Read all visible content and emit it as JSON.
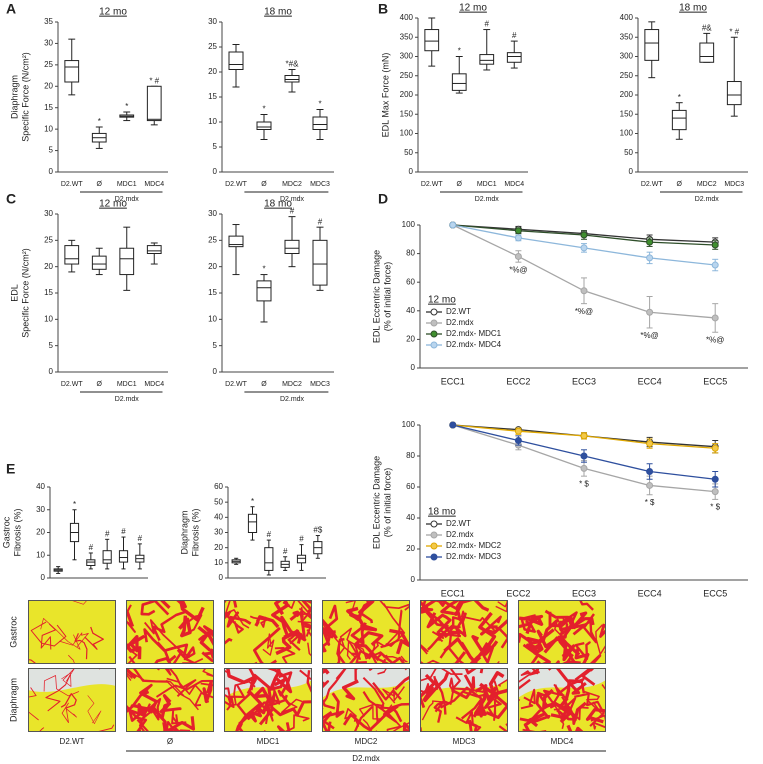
{
  "panel_labels": [
    "A",
    "B",
    "C",
    "D",
    "E"
  ],
  "chart_data": [
    {
      "type": "box",
      "title": "12 mo",
      "ylabel": [
        "Diaphragm",
        "Specific Force (N/cm²)"
      ],
      "categories": [
        "D2.WT",
        "Ø",
        "MDC1",
        "MDC4"
      ],
      "group_label": "D2.mdx",
      "boxes": [
        [
          18,
          21,
          24.5,
          26,
          31
        ],
        [
          5.5,
          7,
          8,
          9,
          10.5
        ],
        [
          12,
          12.8,
          13,
          13.3,
          14
        ],
        [
          11,
          12,
          12.3,
          20,
          20
        ]
      ],
      "annotations": [
        null,
        "*",
        "*",
        "* #"
      ],
      "ylim": [
        0,
        35
      ],
      "yticks": [
        0,
        5,
        10,
        15,
        20,
        25,
        30,
        35
      ]
    },
    {
      "type": "box",
      "title": "18 mo",
      "categories": [
        "D2.WT",
        "Ø",
        "MDC2",
        "MDC3"
      ],
      "group_label": "D2.mdx",
      "boxes": [
        [
          17,
          20.5,
          21.5,
          24,
          25.5
        ],
        [
          6.5,
          8.5,
          9,
          10,
          11.5
        ],
        [
          16,
          18,
          18.5,
          19.3,
          20.5
        ],
        [
          6.5,
          8.5,
          9.5,
          11,
          12.5
        ]
      ],
      "annotations": [
        null,
        "*",
        "*#&",
        "*"
      ],
      "ylim": [
        0,
        30
      ],
      "yticks": [
        0,
        5,
        10,
        15,
        20,
        25,
        30
      ]
    },
    {
      "type": "box",
      "title": "12 mo",
      "ylabel": [
        "EDL Max Force (mN)"
      ],
      "categories": [
        "D2.WT",
        "Ø",
        "MDC1",
        "MDC4"
      ],
      "group_label": "D2.mdx",
      "boxes": [
        [
          275,
          315,
          340,
          370,
          400
        ],
        [
          205,
          212,
          230,
          255,
          300
        ],
        [
          265,
          280,
          290,
          305,
          370
        ],
        [
          270,
          285,
          300,
          310,
          340
        ]
      ],
      "annotations": [
        null,
        "*",
        "#",
        "#"
      ],
      "ylim": [
        0,
        400
      ],
      "yticks": [
        0,
        50,
        100,
        150,
        200,
        250,
        300,
        350,
        400
      ]
    },
    {
      "type": "box",
      "title": "18 mo",
      "categories": [
        "D2.WT",
        "Ø",
        "MDC2",
        "MDC3"
      ],
      "group_label": "D2.mdx",
      "boxes": [
        [
          245,
          290,
          335,
          370,
          390
        ],
        [
          85,
          110,
          140,
          160,
          180
        ],
        [
          285,
          285,
          300,
          335,
          360
        ],
        [
          145,
          175,
          200,
          235,
          350
        ]
      ],
      "annotations": [
        null,
        "*",
        "#&",
        "* #"
      ],
      "ylim": [
        0,
        400
      ],
      "yticks": [
        0,
        50,
        100,
        150,
        200,
        250,
        300,
        350,
        400
      ]
    },
    {
      "type": "box",
      "title": "12 mo",
      "ylabel": [
        "EDL",
        "Specific Force (N/cm²)"
      ],
      "categories": [
        "D2.WT",
        "Ø",
        "MDC1",
        "MDC4"
      ],
      "group_label": "D2.mdx",
      "boxes": [
        [
          19,
          20.5,
          21.5,
          24,
          25
        ],
        [
          18.5,
          19.5,
          20.5,
          22,
          23.5
        ],
        [
          15.5,
          18.5,
          21.5,
          23.5,
          27.5
        ],
        [
          20.5,
          22.5,
          23,
          24,
          24.5
        ]
      ],
      "ylim": [
        0,
        30
      ],
      "yticks": [
        0,
        5,
        10,
        15,
        20,
        25,
        30
      ]
    },
    {
      "type": "box",
      "title": "18 mo",
      "categories": [
        "D2.WT",
        "Ø",
        "MDC2",
        "MDC3"
      ],
      "group_label": "D2.mdx",
      "boxes": [
        [
          18.5,
          23.8,
          24.2,
          25.8,
          28
        ],
        [
          9.5,
          13.5,
          16,
          17.3,
          18.5
        ],
        [
          20,
          22.5,
          23.5,
          25,
          29.5
        ],
        [
          15.5,
          16.5,
          20.5,
          25,
          27.5
        ]
      ],
      "annotations": [
        null,
        "*",
        "#",
        "#"
      ],
      "ylim": [
        0,
        30
      ],
      "yticks": [
        0,
        5,
        10,
        15,
        20,
        25,
        30
      ]
    },
    {
      "type": "line",
      "title": "12 mo",
      "ylabel": [
        "EDL Eccentric Damage",
        "(% of initial force)"
      ],
      "categories": [
        "ECC1",
        "ECC2",
        "ECC3",
        "ECC4",
        "ECC5"
      ],
      "legend": "lower left",
      "series": [
        {
          "name": "D2.WT",
          "color": "#333333",
          "marker_fill": "#ffffff",
          "values": [
            100,
            97,
            94,
            90,
            88
          ],
          "errors": [
            0,
            2,
            2,
            3,
            3
          ]
        },
        {
          "name": "D2.mdx",
          "color": "#a6a6a6",
          "marker_fill": "#bfbfbf",
          "values": [
            100,
            78,
            54,
            39,
            35
          ],
          "errors": [
            0,
            4,
            9,
            11,
            10
          ],
          "annotations": [
            null,
            "*%@",
            "*%@",
            "*%@",
            "*%@"
          ]
        },
        {
          "name": "D2.mdx- MDC1",
          "color": "#2f4f2a",
          "marker_fill": "#3f8f2e",
          "values": [
            100,
            96,
            93,
            88,
            86
          ],
          "errors": [
            0,
            2,
            3,
            3,
            3
          ]
        },
        {
          "name": "D2.mdx- MDC4",
          "color": "#8db7db",
          "marker_fill": "#b9d5ee",
          "values": [
            100,
            91,
            84,
            77,
            72
          ],
          "errors": [
            0,
            2,
            3,
            4,
            4
          ]
        }
      ],
      "ylim": [
        0,
        100
      ],
      "yticks": [
        0,
        20,
        40,
        60,
        80,
        100
      ]
    },
    {
      "type": "line",
      "title": "18 mo",
      "ylabel": [
        "EDL Eccentric Damage",
        "(% of initial force)"
      ],
      "categories": [
        "ECC1",
        "ECC2",
        "ECC3",
        "ECC4",
        "ECC5"
      ],
      "legend": "lower left",
      "series": [
        {
          "name": "D2.WT",
          "color": "#333333",
          "marker_fill": "#ffffff",
          "values": [
            100,
            97,
            93,
            89,
            86
          ],
          "errors": [
            0,
            1,
            2,
            3,
            4
          ]
        },
        {
          "name": "D2.mdx",
          "color": "#a6a6a6",
          "marker_fill": "#bfbfbf",
          "values": [
            100,
            87,
            72,
            61,
            57
          ],
          "errors": [
            0,
            3,
            5,
            6,
            5
          ],
          "annotations": [
            null,
            null,
            "* $",
            "* $",
            "* $"
          ]
        },
        {
          "name": "D2.mdx- MDC2",
          "color": "#e0a800",
          "marker_fill": "#f2c94c",
          "values": [
            100,
            96,
            93,
            88,
            85
          ],
          "errors": [
            0,
            2,
            2,
            3,
            3
          ]
        },
        {
          "name": "D2.mdx- MDC3",
          "color": "#2e4f9e",
          "marker_fill": "#2e4f9e",
          "values": [
            100,
            90,
            80,
            70,
            65
          ],
          "errors": [
            0,
            3,
            4,
            5,
            5
          ]
        }
      ],
      "ylim": [
        0,
        100
      ],
      "yticks": [
        0,
        20,
        40,
        60,
        80,
        100
      ]
    },
    {
      "type": "box",
      "ylabel": [
        "Gastroc",
        "Fibrosis (%)"
      ],
      "boxes": [
        [
          2,
          3,
          3.5,
          4,
          5
        ],
        [
          8,
          16,
          20,
          24,
          30
        ],
        [
          4,
          5.5,
          7,
          8,
          11
        ],
        [
          4,
          6.5,
          8,
          12,
          17
        ],
        [
          4,
          7,
          9,
          12,
          18
        ],
        [
          4,
          7,
          8.5,
          10,
          15
        ]
      ],
      "annotations": [
        null,
        "*",
        "#",
        "#",
        "#",
        "#"
      ],
      "ylim": [
        0,
        40
      ],
      "yticks": [
        0,
        10,
        20,
        30,
        40
      ]
    },
    {
      "type": "box",
      "ylabel": [
        "Diaphragm",
        "Fibrosis (%)"
      ],
      "boxes": [
        [
          9,
          10,
          11,
          12,
          13
        ],
        [
          25,
          30,
          37,
          42,
          47
        ],
        [
          2,
          5,
          10,
          20,
          25
        ],
        [
          5,
          7,
          9,
          11,
          14
        ],
        [
          5,
          10,
          13,
          15,
          22
        ],
        [
          13,
          16,
          20,
          24,
          28
        ]
      ],
      "annotations": [
        null,
        "*",
        "#",
        "#",
        "#",
        "#$"
      ],
      "ylim": [
        0,
        60
      ],
      "yticks": [
        0,
        10,
        20,
        30,
        40,
        50,
        60
      ]
    }
  ],
  "histology": {
    "row_labels": [
      "Gastroc",
      "Diaphragm"
    ],
    "column_labels": [
      "D2.WT",
      "Ø",
      "MDC1",
      "MDC2",
      "MDC3",
      "MDC4"
    ],
    "group_label": "D2.mdx"
  }
}
